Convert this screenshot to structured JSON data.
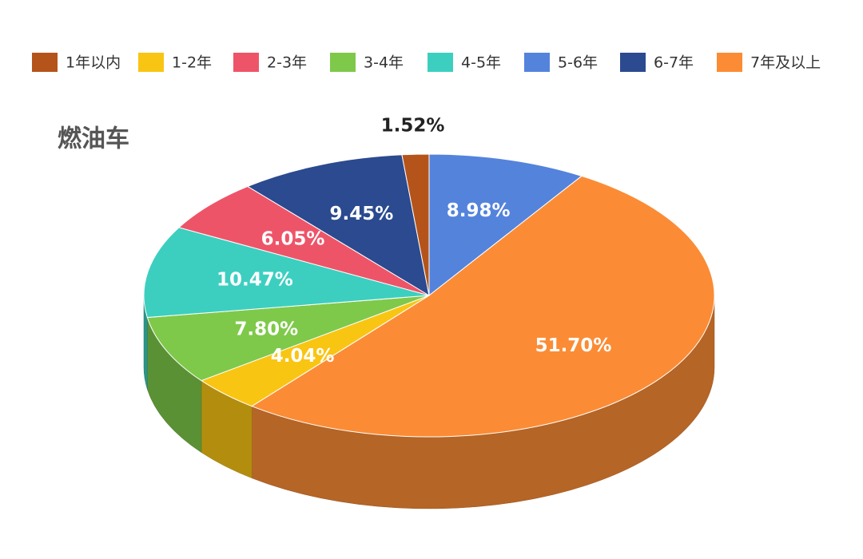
{
  "chart_data": {
    "type": "pie3d",
    "title": "燃油车",
    "categories": [
      "1年以内",
      "1-2年",
      "2-3年",
      "3-4年",
      "4-5年",
      "5-6年",
      "6-7年",
      "7年及以上"
    ],
    "values": [
      1.52,
      4.04,
      6.05,
      7.8,
      10.47,
      8.98,
      9.45,
      51.7
    ],
    "value_labels": [
      "1.52%",
      "4.04%",
      "6.05%",
      "7.80%",
      "10.47%",
      "8.98%",
      "9.45%",
      "51.70%"
    ],
    "colors": [
      "#b5541a",
      "#f9c513",
      "#ee5468",
      "#7ec94a",
      "#3ccfc0",
      "#5483dc",
      "#2b4a8f",
      "#fb8c35"
    ],
    "legend": "top"
  }
}
